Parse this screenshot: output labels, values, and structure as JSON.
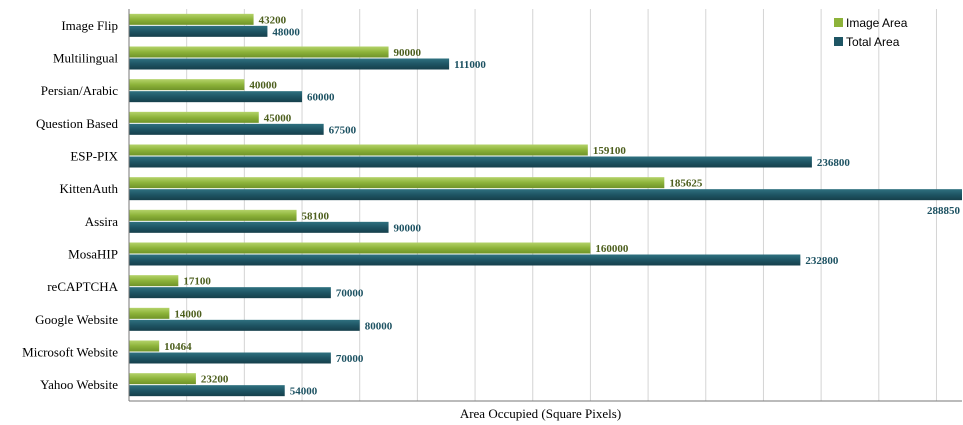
{
  "chart_data": {
    "type": "bar",
    "orientation": "horizontal",
    "categories": [
      "Image Flip",
      "Multilingual",
      "Persian/Arabic",
      "Question Based",
      "ESP-PIX",
      "KittenAuth",
      "Assira",
      "MosaHIP",
      "reCAPTCHA",
      "Google Website",
      "Microsoft Website",
      "Yahoo Website"
    ],
    "series": [
      {
        "name": "Image Area",
        "color": "#8db33a",
        "values": [
          43200,
          90000,
          40000,
          45000,
          159100,
          185625,
          58100,
          160000,
          17100,
          14000,
          10464,
          23200
        ]
      },
      {
        "name": "Total Area",
        "color": "#1e5564",
        "values": [
          48000,
          111000,
          60000,
          67500,
          236800,
          288850,
          90000,
          232800,
          70000,
          80000,
          70000,
          54000
        ]
      }
    ],
    "value_labels": {
      "image": [
        "43200",
        "90000",
        "40000",
        "45000",
        "159100",
        "185625",
        "58100",
        "160000",
        "17100",
        "14000",
        "10464",
        "23200"
      ],
      "total": [
        "48000",
        "111000",
        "60000",
        "67500",
        "236800",
        "288850",
        "90000",
        "232800",
        "70000",
        "80000",
        "70000",
        "54000"
      ]
    },
    "xlabel": "Area Occupied (Square Pixels)",
    "xlim": [
      0,
      288850
    ],
    "grid_step": 20000,
    "grid": true,
    "legend": "top-right"
  }
}
